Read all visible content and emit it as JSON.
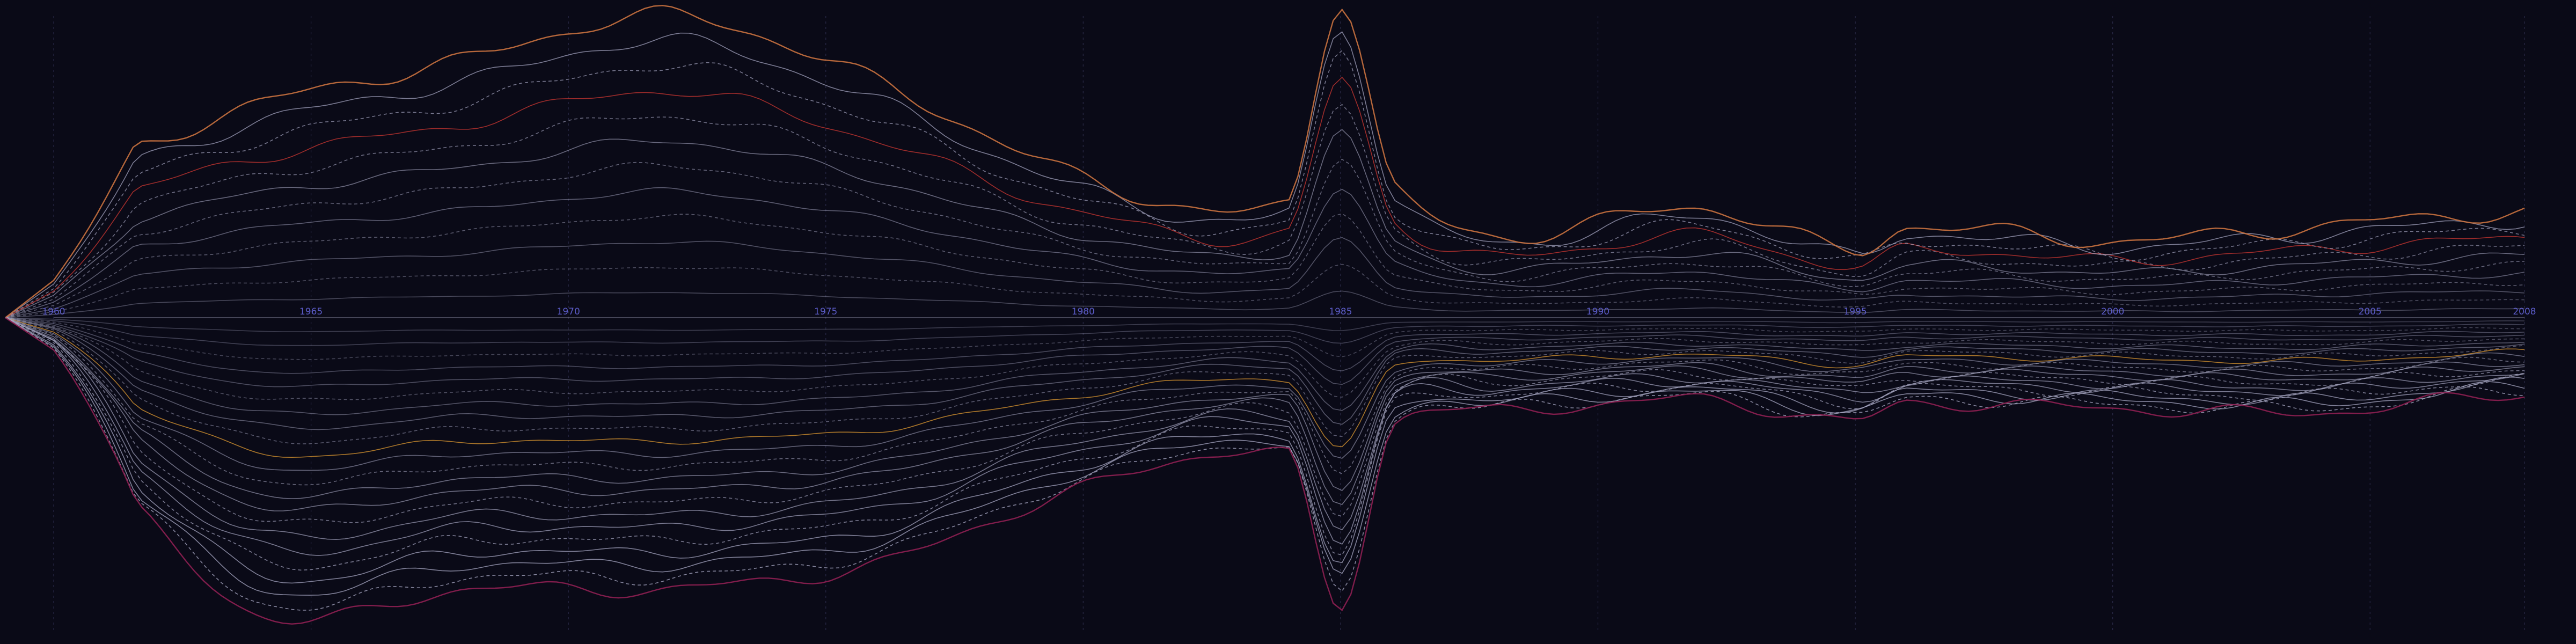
{
  "chart_data": {
    "type": "area",
    "subtype": "streamgraph",
    "x_axis": {
      "min": 1960,
      "max": 2008,
      "ticks": [
        1960,
        1965,
        1970,
        1975,
        1980,
        1985,
        1990,
        1995,
        2000,
        2005,
        2008
      ]
    },
    "tick_labels": [
      "1960",
      "1965",
      "1970",
      "1975",
      "1980",
      "1985",
      "1990",
      "1995",
      "2000",
      "2005",
      "2008"
    ],
    "grid": true,
    "legend": "none",
    "x": [
      1960,
      1964,
      1968,
      1972,
      1976,
      1980,
      1984,
      1985,
      1986,
      1988,
      1992,
      1995,
      1996,
      2000,
      2004,
      2008
    ],
    "upper_envelope": [
      1.0,
      1.45,
      1.75,
      2.05,
      1.6,
      0.95,
      0.78,
      2.15,
      0.9,
      0.55,
      0.75,
      0.45,
      0.62,
      0.52,
      0.62,
      0.72
    ],
    "lower_envelope": [
      1.0,
      2.35,
      2.15,
      2.15,
      1.95,
      1.35,
      1.1,
      2.3,
      0.85,
      0.75,
      0.65,
      0.82,
      0.68,
      0.72,
      0.75,
      0.6
    ],
    "series_count_above": 12,
    "series_count_below": 22,
    "colors": {
      "background": "#0a0a17",
      "upper_outer": "#c9713f",
      "upper_accent": "#b8322f",
      "lower_accent": "#c78a2e",
      "lower_outer": "#8e1f52",
      "line_neutral": "#a9a9c4",
      "tick_label": "#5c5cc8"
    }
  }
}
